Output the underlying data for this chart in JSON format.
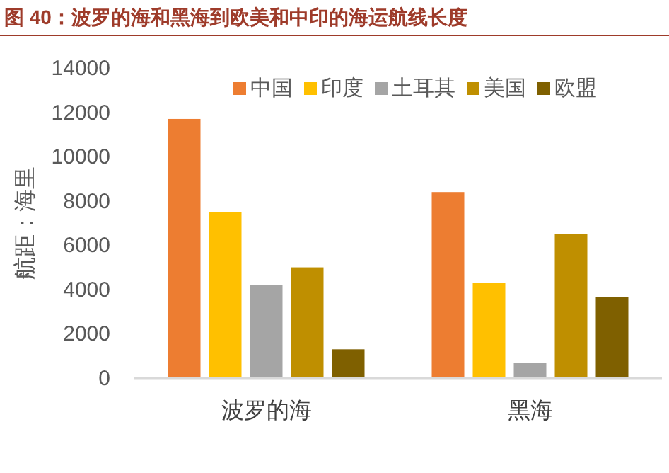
{
  "chart_data": {
    "type": "bar",
    "title": "图 40：波罗的海和黑海到欧美和中印的海运航线长度",
    "ylabel": "航距：海里",
    "categories": [
      "波罗的海",
      "黑海"
    ],
    "series": [
      {
        "name": "中国",
        "color": "#ed7d31",
        "values": [
          11700,
          8400
        ]
      },
      {
        "name": "印度",
        "color": "#ffc000",
        "values": [
          7500,
          4300
        ]
      },
      {
        "name": "土耳其",
        "color": "#a5a5a5",
        "values": [
          4200,
          700
        ]
      },
      {
        "name": "美国",
        "color": "#bf8f00",
        "values": [
          5000,
          6500
        ]
      },
      {
        "name": "欧盟",
        "color": "#7f6000",
        "values": [
          1300,
          3650
        ]
      }
    ],
    "ylim": [
      0,
      14000
    ],
    "yticks": [
      0,
      2000,
      4000,
      6000,
      8000,
      10000,
      12000,
      14000
    ],
    "grid": false,
    "legend": "top"
  }
}
